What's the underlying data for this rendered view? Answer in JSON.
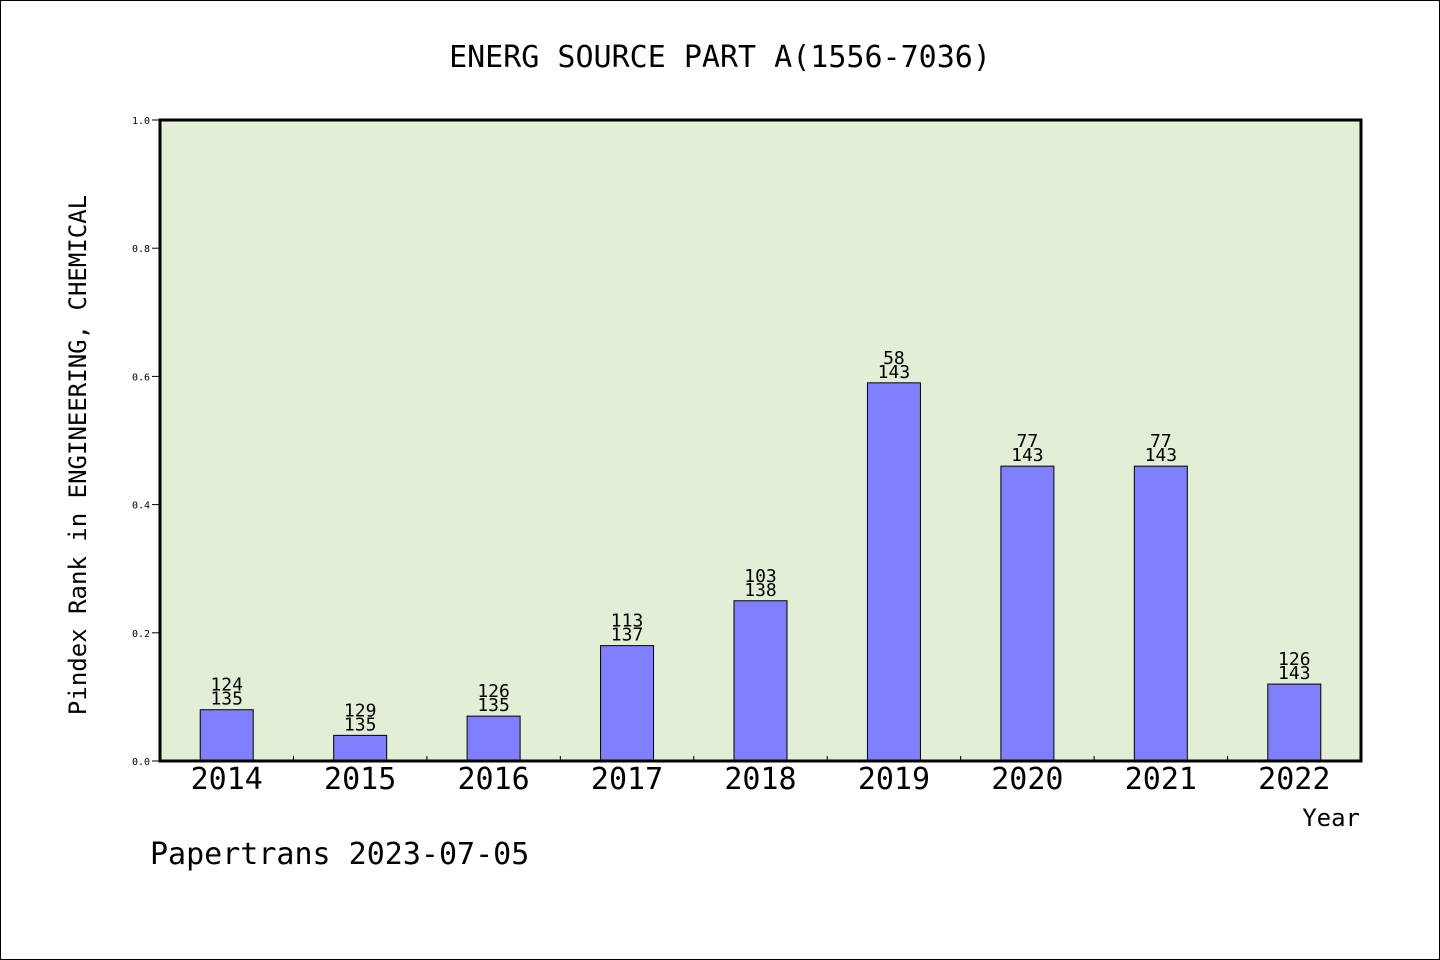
{
  "chart_data": {
    "type": "bar",
    "title": "ENERG SOURCE PART A(1556-7036)",
    "xlabel": "Year",
    "ylabel": "Pindex Rank in ENGINEERING, CHEMICAL",
    "categories": [
      "2014",
      "2015",
      "2016",
      "2017",
      "2018",
      "2019",
      "2020",
      "2021",
      "2022"
    ],
    "values": [
      0.08,
      0.04,
      0.07,
      0.18,
      0.25,
      0.59,
      0.46,
      0.46,
      0.12
    ],
    "rank_labels": [
      "124",
      "129",
      "126",
      "113",
      "103",
      "58",
      "77",
      "77",
      "126"
    ],
    "total_labels": [
      "135",
      "135",
      "135",
      "137",
      "138",
      "143",
      "143",
      "143",
      "143"
    ],
    "ylim": [
      0,
      1.0
    ],
    "yticks": [
      "0.0",
      "0.2",
      "0.4",
      "0.6",
      "0.8",
      "1.0"
    ],
    "grid": false,
    "plot_background": "#e2efd6",
    "bar_color": "#8080ff"
  },
  "footer": "Papertrans 2023-07-05"
}
